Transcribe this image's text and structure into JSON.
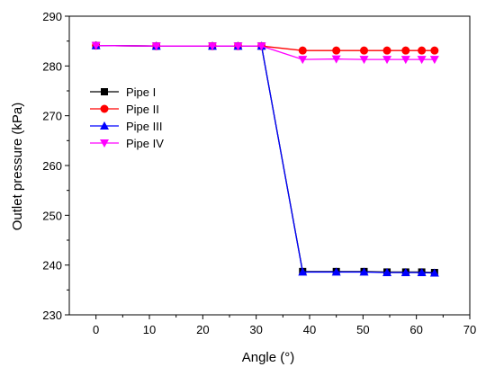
{
  "chart_data": {
    "type": "line",
    "xlabel": "Angle (°)",
    "ylabel": "Outlet pressure (kPa)",
    "xlim": [
      -5,
      70
    ],
    "ylim": [
      230,
      290
    ],
    "xticks": [
      0,
      10,
      20,
      30,
      40,
      50,
      60,
      70
    ],
    "yticks": [
      230,
      240,
      250,
      260,
      270,
      280,
      290
    ],
    "x": [
      0,
      11.3,
      21.8,
      26.6,
      31,
      38.7,
      45,
      50.2,
      54.5,
      58,
      61,
      63.4
    ],
    "series": [
      {
        "name": "Pipe I",
        "color": "#000000",
        "marker": "square",
        "values": [
          284.1,
          284.0,
          284.0,
          284.0,
          284.0,
          238.7,
          238.7,
          238.7,
          238.6,
          238.6,
          238.6,
          238.5
        ]
      },
      {
        "name": "Pipe II",
        "color": "#ff0000",
        "marker": "circle",
        "values": [
          284.1,
          284.0,
          284.0,
          284.0,
          284.0,
          283.1,
          283.1,
          283.1,
          283.1,
          283.1,
          283.1,
          283.1
        ]
      },
      {
        "name": "Pipe III",
        "color": "#0000ff",
        "marker": "triangle-up",
        "values": [
          284.1,
          284.0,
          284.0,
          284.0,
          284.0,
          238.6,
          238.6,
          238.6,
          238.5,
          238.5,
          238.5,
          238.4
        ]
      },
      {
        "name": "Pipe IV",
        "color": "#ff00ff",
        "marker": "triangle-down",
        "values": [
          284.1,
          284.0,
          284.0,
          284.0,
          284.0,
          281.3,
          281.4,
          281.3,
          281.3,
          281.3,
          281.3,
          281.3
        ]
      }
    ],
    "legend": {
      "position": "upper-left"
    }
  }
}
